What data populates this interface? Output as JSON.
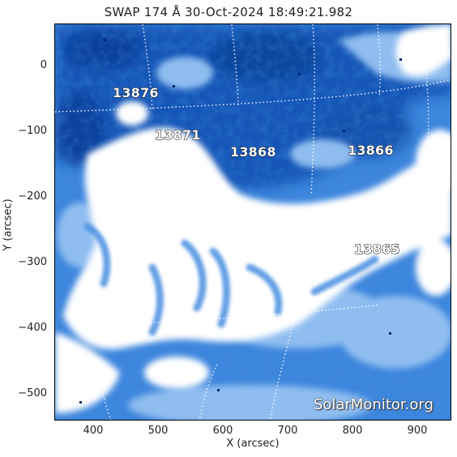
{
  "title": "SWAP 174 Å 30-Oct-2024 18:49:21.982",
  "axes": {
    "xlabel": "X (arcsec)",
    "ylabel": "Y (arcsec)",
    "xticks": [
      "400",
      "500",
      "600",
      "700",
      "800",
      "900"
    ],
    "yticks": [
      "0",
      "−100",
      "−200",
      "−300",
      "−400",
      "−500"
    ]
  },
  "active_regions": [
    "13876",
    "13871",
    "13868",
    "13866",
    "13865"
  ],
  "watermark": "SolarMonitor.org",
  "colors": {
    "deep_blue": "#0a3f9a",
    "mid_blue": "#2c79d6",
    "light_blue": "#9cc7f0",
    "saturated": "#ffffff"
  }
}
